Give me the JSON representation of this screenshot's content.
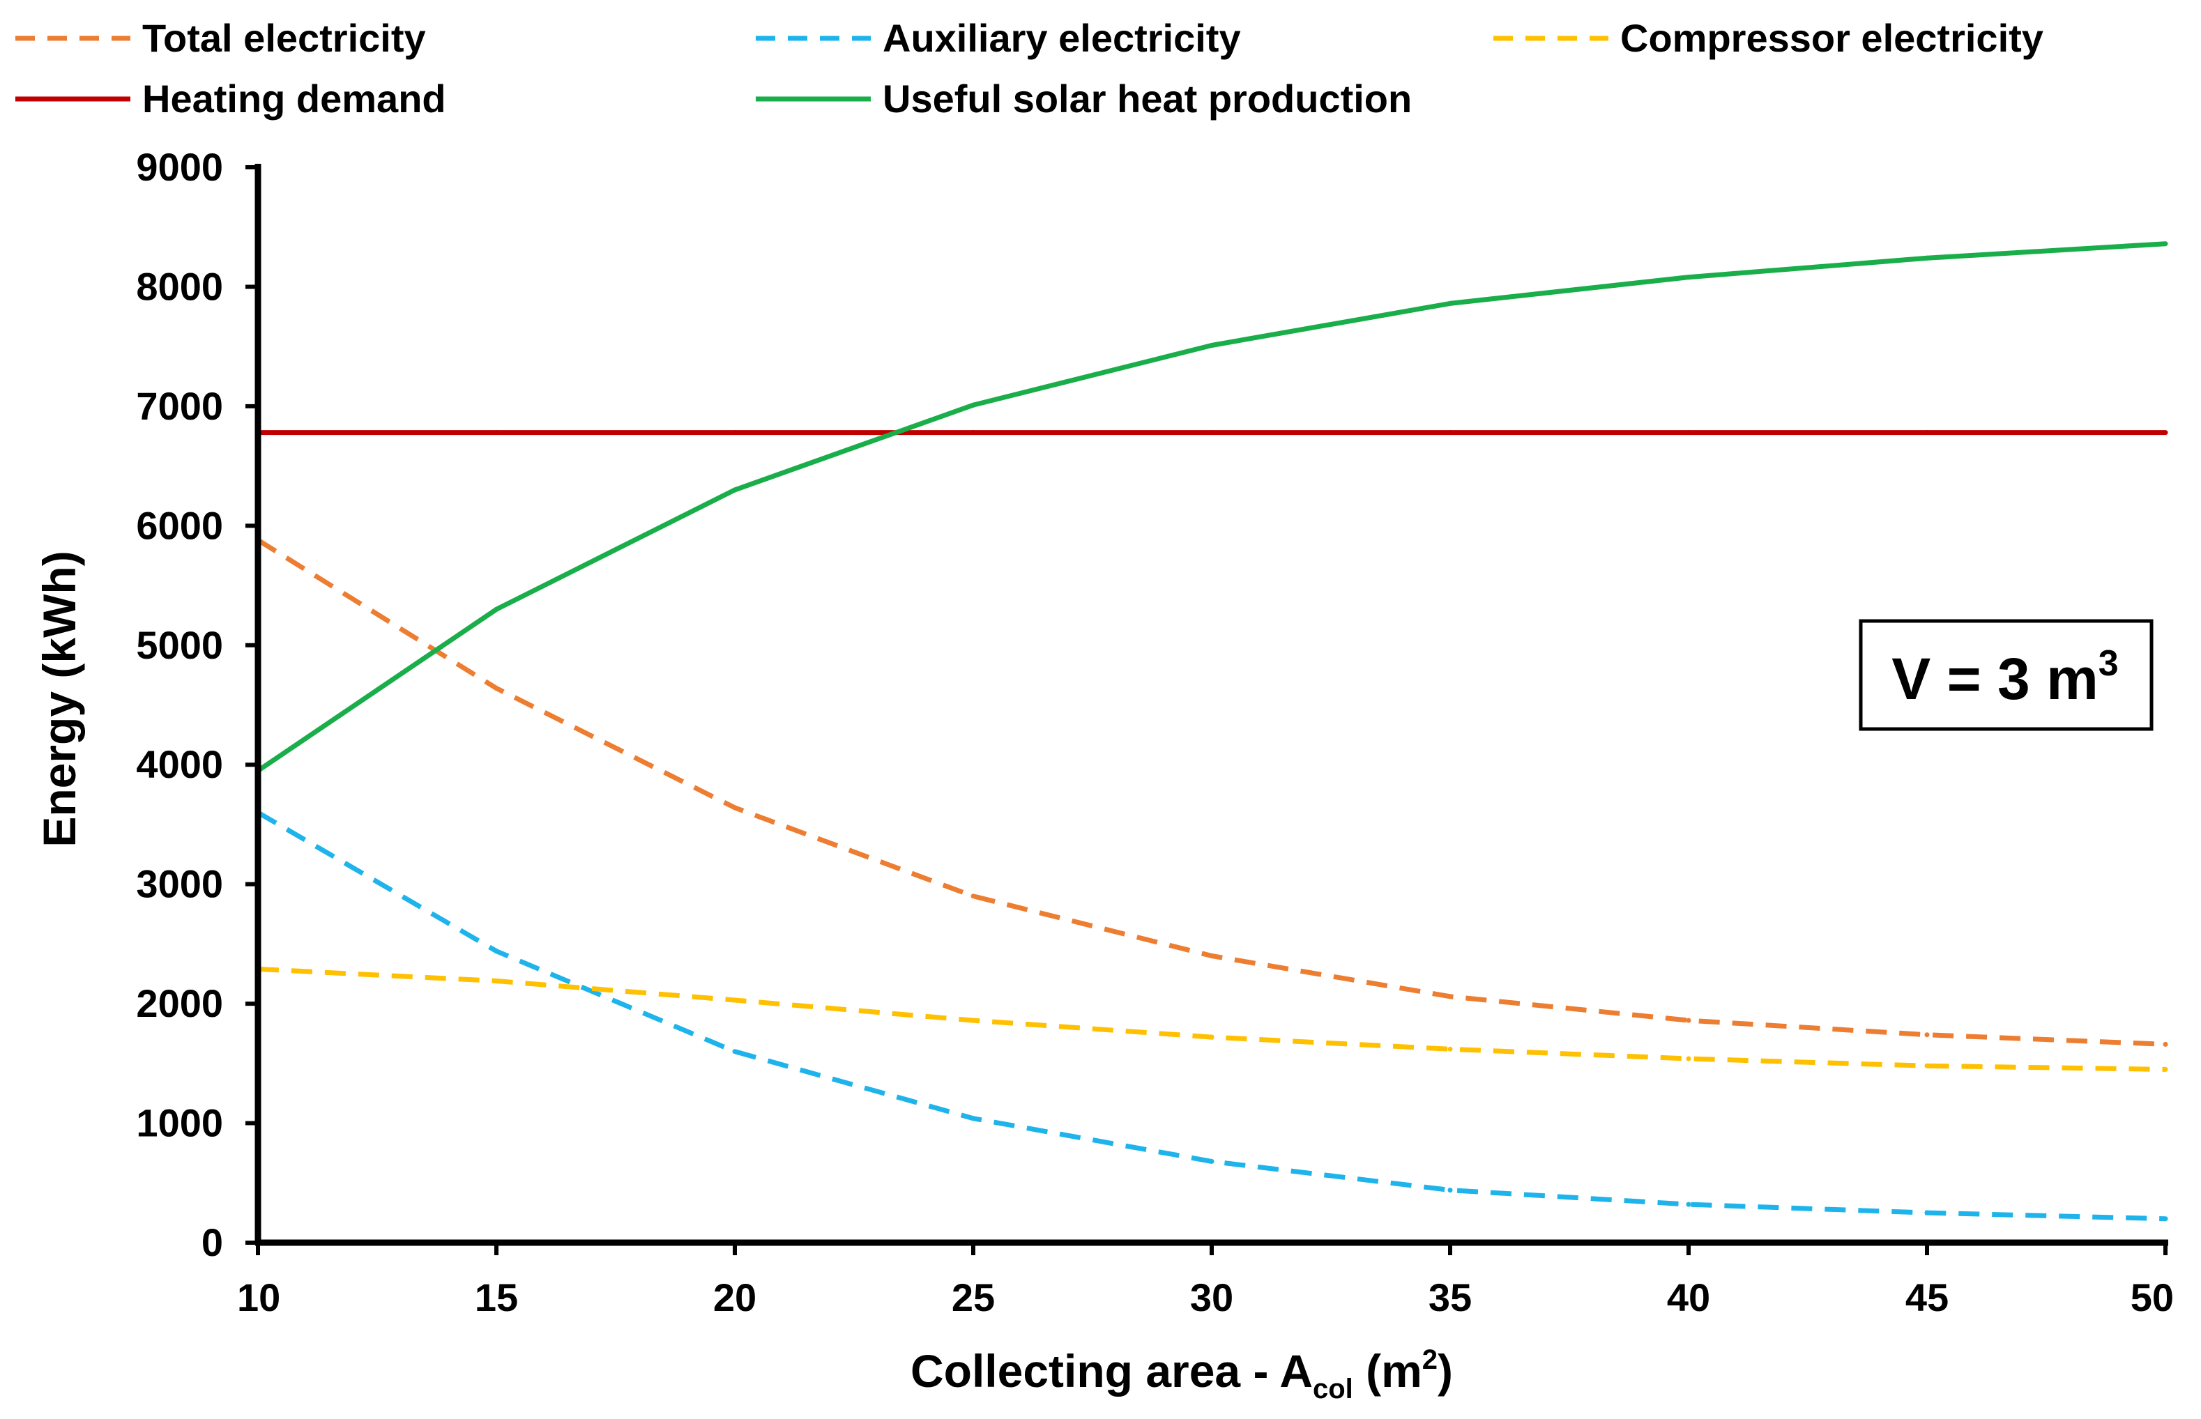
{
  "chart_data": {
    "type": "line",
    "title": "",
    "xlabel": {
      "prefix": "Collecting area - A",
      "subscript": "col",
      "unit_open": " (m",
      "unit_sup": "2",
      "unit_close": ")"
    },
    "ylabel": "Energy (kWh)",
    "xlim": [
      10,
      50
    ],
    "ylim": [
      0,
      9000
    ],
    "x_ticks": [
      "10",
      "15",
      "20",
      "25",
      "30",
      "35",
      "40",
      "45",
      "50"
    ],
    "y_ticks": [
      "0",
      "1000",
      "2000",
      "3000",
      "4000",
      "5000",
      "6000",
      "7000",
      "8000",
      "9000"
    ],
    "grid": false,
    "legend_position": "top",
    "x": [
      10,
      15,
      20,
      25,
      30,
      35,
      40,
      45,
      50
    ],
    "series": [
      {
        "name": "Total electricity",
        "color": "#ED7D31",
        "style": "dashed",
        "values": [
          5880,
          4640,
          3640,
          2900,
          2400,
          2060,
          1860,
          1740,
          1660
        ]
      },
      {
        "name": "Auxiliary electricity",
        "color": "#1EB4EB",
        "style": "dashed",
        "values": [
          3600,
          2440,
          1600,
          1040,
          680,
          440,
          320,
          250,
          200
        ]
      },
      {
        "name": "Compressor electricity",
        "color": "#FFC000",
        "style": "dashed",
        "values": [
          2290,
          2190,
          2030,
          1860,
          1720,
          1620,
          1540,
          1480,
          1450
        ]
      },
      {
        "name": "Heating demand",
        "color": "#C00000",
        "style": "solid",
        "values": [
          6780,
          6780,
          6780,
          6780,
          6780,
          6780,
          6780,
          6780,
          6780
        ]
      },
      {
        "name": "Useful solar heat production",
        "color": "#1AAE4B",
        "style": "solid",
        "values": [
          3950,
          5300,
          6300,
          7010,
          7510,
          7860,
          8080,
          8240,
          8360
        ]
      }
    ],
    "annotation": {
      "prefix": "V = 3 m",
      "sup": "3"
    }
  }
}
